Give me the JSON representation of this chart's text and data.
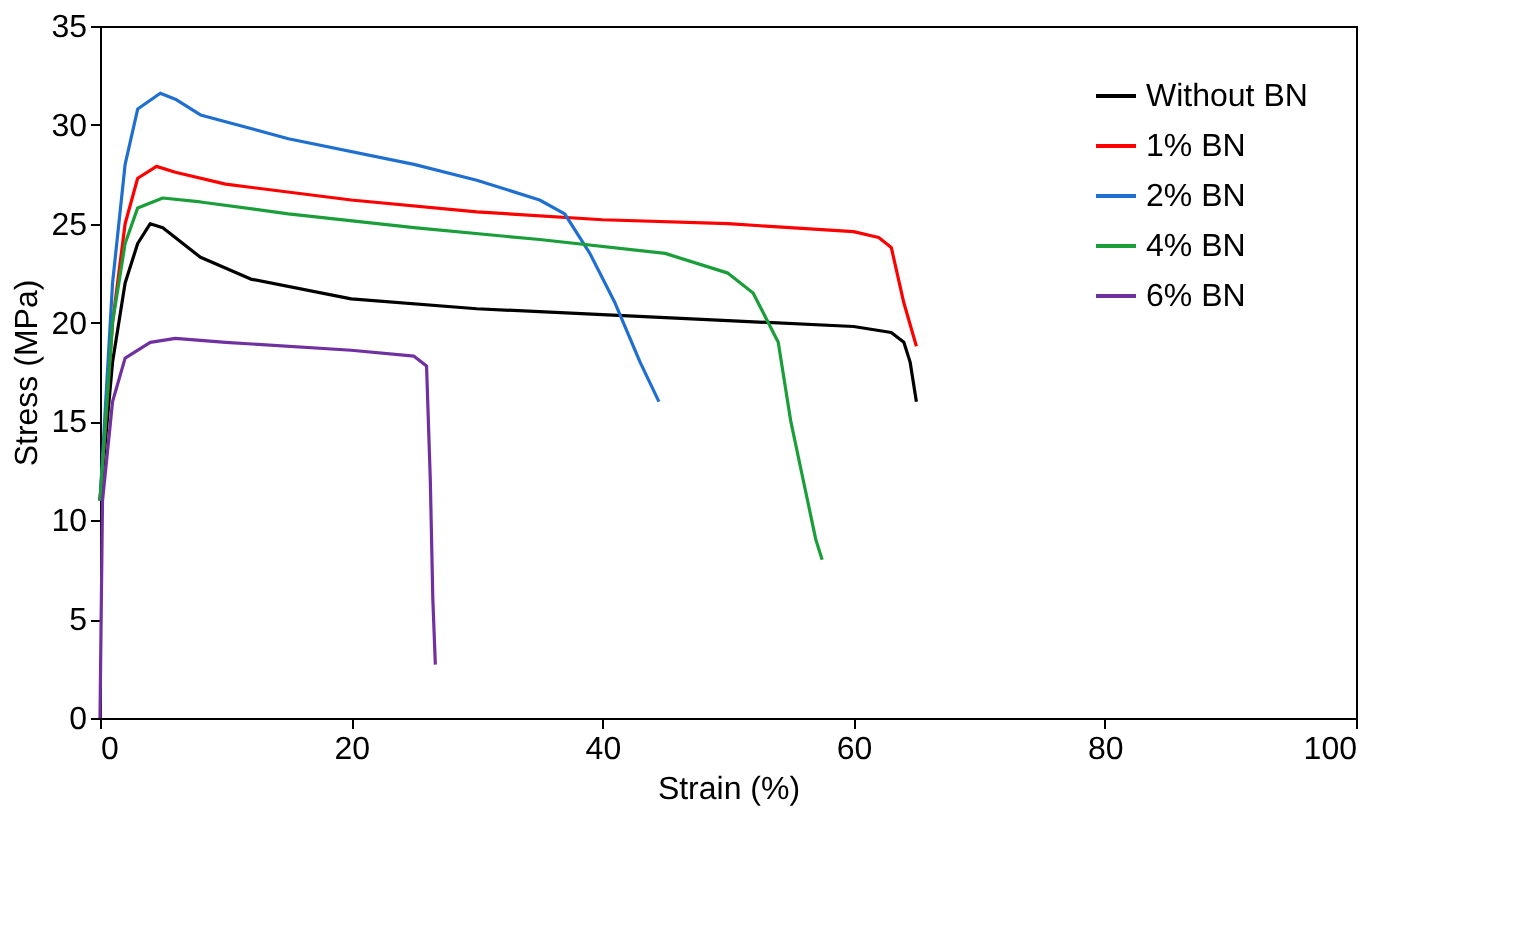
{
  "chart_data": {
    "type": "line",
    "xlabel": "Strain (%)",
    "ylabel": "Stress (MPa)",
    "xlim": [
      0,
      100
    ],
    "ylim": [
      0,
      35
    ],
    "xticks": [
      0,
      20,
      40,
      60,
      80,
      100
    ],
    "yticks": [
      0,
      5,
      10,
      15,
      20,
      25,
      30,
      35
    ],
    "grid": false,
    "legend": "top right",
    "marker": "none",
    "line_style": "solid",
    "series": [
      {
        "name": "Without BN",
        "color": "#000000",
        "x": [
          0,
          1,
          2,
          3,
          4,
          5,
          8,
          12,
          20,
          30,
          40,
          50,
          60,
          63,
          64,
          64.5,
          65
        ],
        "values": [
          11,
          18,
          22,
          24,
          25,
          24.8,
          23.3,
          22.2,
          21.2,
          20.7,
          20.4,
          20.1,
          19.8,
          19.5,
          19,
          18,
          16
        ]
      },
      {
        "name": "1% BN",
        "color": "#ff0000",
        "x": [
          0,
          1,
          2,
          3,
          4.5,
          6,
          10,
          20,
          30,
          40,
          50,
          60,
          62,
          63,
          64,
          65
        ],
        "values": [
          11,
          20,
          25,
          27.3,
          27.9,
          27.6,
          27,
          26.2,
          25.6,
          25.2,
          25,
          24.6,
          24.3,
          23.8,
          21,
          18.8
        ]
      },
      {
        "name": "2% BN",
        "color": "#1f6fd0",
        "x": [
          0,
          1,
          2,
          3,
          4.8,
          6,
          8,
          15,
          25,
          30,
          35,
          37,
          39,
          41,
          43,
          44.5
        ],
        "values": [
          11,
          22,
          28,
          30.8,
          31.6,
          31.3,
          30.5,
          29.3,
          28,
          27.2,
          26.2,
          25.5,
          23.5,
          21,
          18,
          16
        ]
      },
      {
        "name": "4% BN",
        "color": "#1a9e3a",
        "x": [
          0,
          1,
          2,
          3,
          5,
          8,
          15,
          25,
          35,
          45,
          50,
          52,
          54,
          55,
          56,
          57,
          57.5
        ],
        "values": [
          11,
          20,
          24,
          25.8,
          26.3,
          26.1,
          25.5,
          24.8,
          24.2,
          23.5,
          22.5,
          21.5,
          19,
          15,
          12,
          9,
          8
        ]
      },
      {
        "name": "6% BN",
        "color": "#7030a0",
        "x": [
          0,
          0.2,
          1,
          2,
          4,
          6,
          10,
          20,
          25,
          26,
          26.3,
          26.5,
          26.7
        ],
        "values": [
          0,
          11,
          16,
          18.2,
          19,
          19.2,
          19,
          18.6,
          18.3,
          17.8,
          12,
          6,
          2.7
        ]
      }
    ]
  }
}
